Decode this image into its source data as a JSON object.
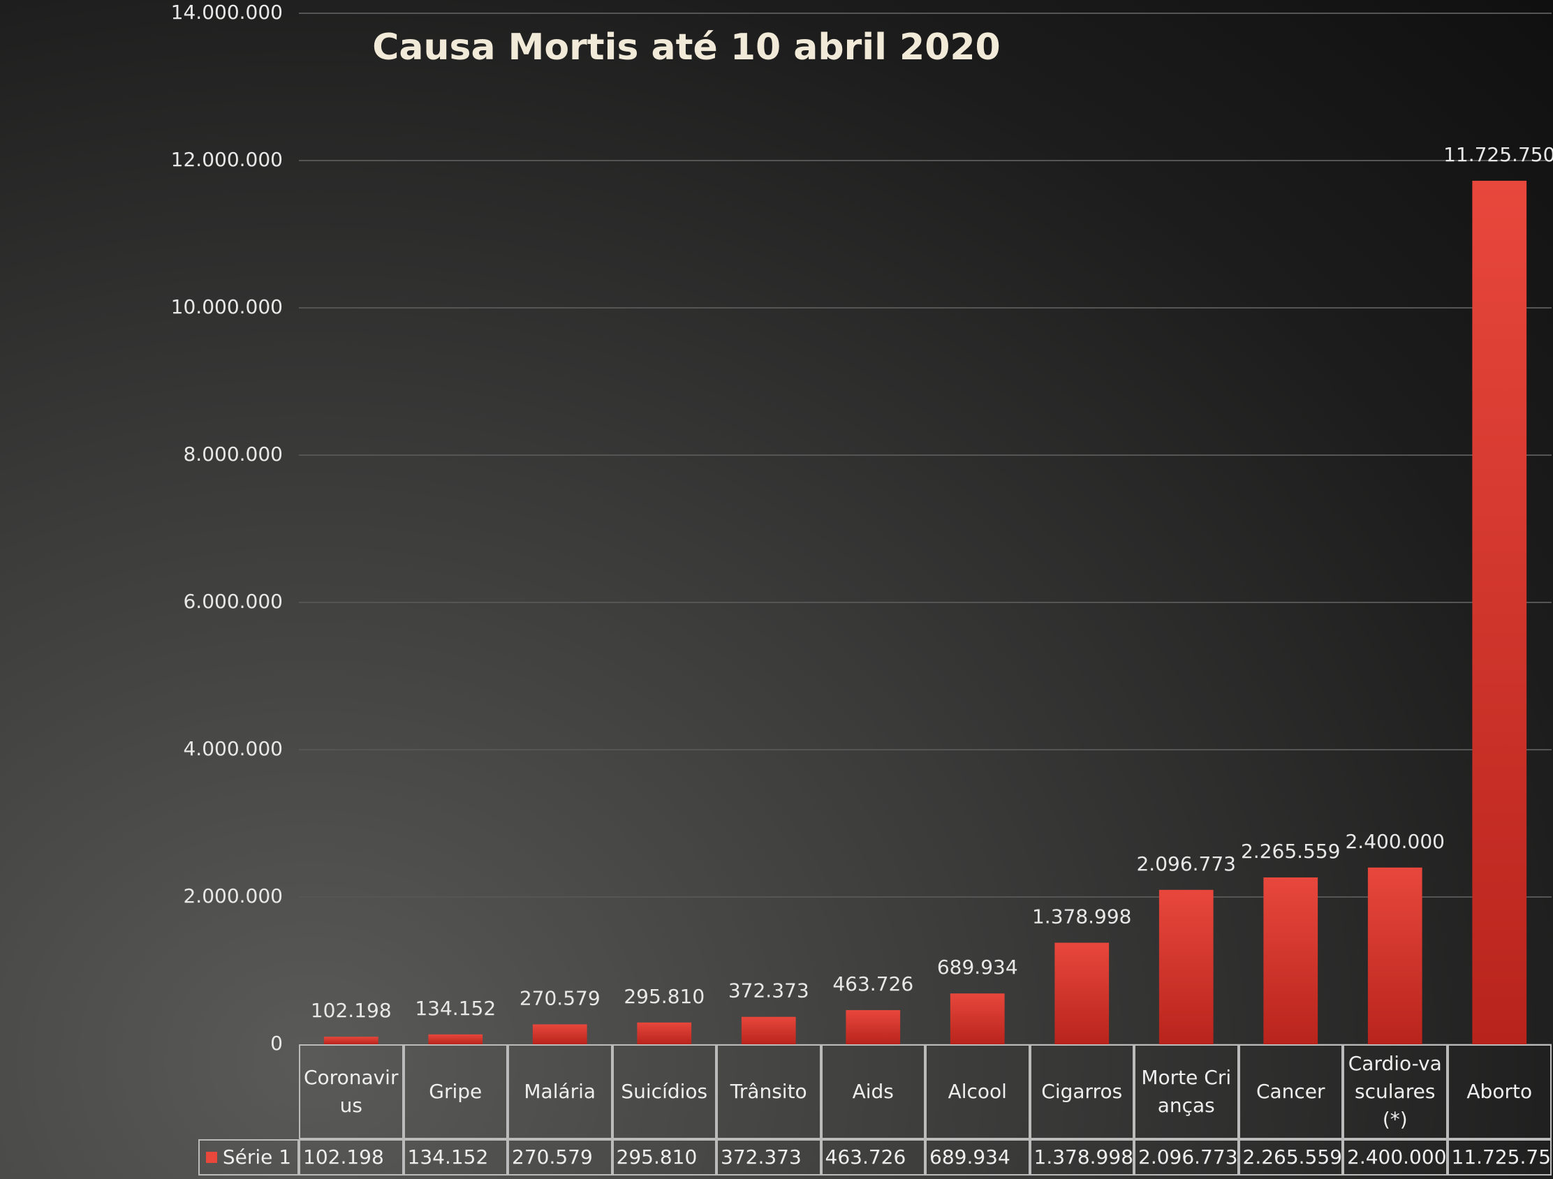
{
  "chart_data": {
    "type": "bar",
    "title": "Causa Mortis até 10 abril 2020",
    "categories": [
      "Coronavirus",
      "Gripe",
      "Malária",
      "Suicídios",
      "Trânsito",
      "Aids",
      "Alcool",
      "Cigarros",
      "Morte Crianças",
      "Cancer",
      "Cardio-vasculares (*)",
      "Aborto"
    ],
    "series": [
      {
        "name": "Série 1",
        "color": "#e8473c",
        "values": [
          102198,
          134152,
          270579,
          295810,
          372373,
          463726,
          689934,
          1378998,
          2096773,
          2265559,
          2400000,
          11725750
        ],
        "value_labels": [
          "102.198",
          "134.152",
          "270.579",
          "295.810",
          "372.373",
          "463.726",
          "689.934",
          "1.378.998",
          "2.096.773",
          "2.265.559",
          "2.400.000",
          "11.725.750"
        ]
      }
    ],
    "ylim": [
      0,
      14000000
    ],
    "yticks": [
      0,
      {
        "value": 2000000,
        "label": "2.000.000"
      },
      {
        "value": 4000000,
        "label": "4.000.000"
      },
      {
        "value": 6000000,
        "label": "6.000.000"
      },
      {
        "value": 8000000,
        "label": "8.000.000"
      },
      {
        "value": 10000000,
        "label": "10.000.000"
      },
      {
        "value": 12000000,
        "label": "12.000.000"
      },
      {
        "value": 14000000,
        "label": "14.000.000"
      }
    ],
    "grid": true,
    "data_table": true
  }
}
